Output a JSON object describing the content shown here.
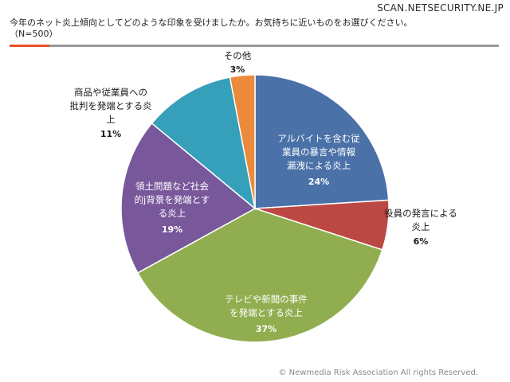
{
  "site_tag": "SCAN.NETSECURITY.NE.JP",
  "question": {
    "text": "今年のネット炎上傾向としてどのような印象を受けましたか。お気持ちに近いものをお選びください。",
    "sample": "（N=500）"
  },
  "colors": {
    "rule": "#9a9a9a",
    "rule_accent": "#e8502a"
  },
  "chart_data": {
    "type": "pie",
    "title": "",
    "slices": [
      {
        "label": "アルバイトを含む従業員の暴言や情報漏洩による炎上",
        "value": 24,
        "pct_text": "24%",
        "color": "#4a71a8"
      },
      {
        "label": "役員の発言による炎上",
        "value": 6,
        "pct_text": "6%",
        "color": "#bc4843"
      },
      {
        "label": "テレビや新聞の事件を発端とする炎上",
        "value": 37,
        "pct_text": "37%",
        "color": "#90ae4f"
      },
      {
        "label": "領土問題など社会的/背景を発端とする炎上",
        "value": 19,
        "pct_text": "19%",
        "color": "#78579a"
      },
      {
        "label": "商品や従業員への批判を発端とする炎上",
        "value": 11,
        "pct_text": "11%",
        "color": "#36a0ba"
      },
      {
        "label": "その他",
        "value": 3,
        "pct_text": "3%",
        "color": "#ea8a3a"
      }
    ],
    "label_lines": [
      [
        "アルバイトを含む従",
        "業員の暴言や情報",
        "漏洩による炎上"
      ],
      [
        "役員の発言による",
        "炎上"
      ],
      [
        "テレビや新聞の事件",
        "を発端とする炎上"
      ],
      [
        "領土問題など社会",
        "的j背景を発端とす",
        "る炎上"
      ],
      [
        "商品や従業員への",
        "批判を発端とする炎",
        "上"
      ],
      [
        "その他"
      ]
    ]
  },
  "copyright": "© Newmedia Risk Association All rights Reserved."
}
